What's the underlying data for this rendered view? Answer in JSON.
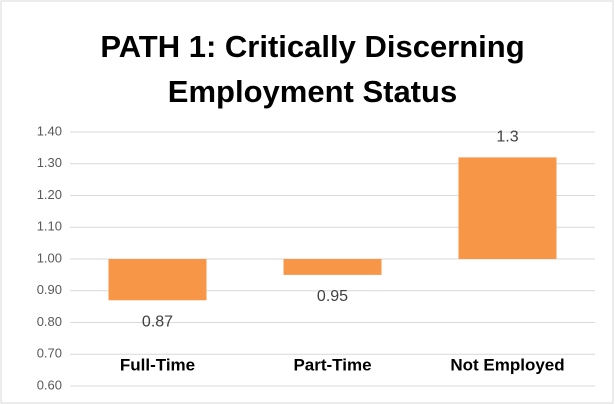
{
  "chart_data": {
    "type": "bar",
    "title": "PATH 1: Critically Discerning Employment Status",
    "categories": [
      "Full-Time",
      "Part-Time",
      "Not Employed"
    ],
    "values": [
      0.87,
      0.95,
      1.32
    ],
    "value_labels": [
      "0.87",
      "0.95",
      "1.3"
    ],
    "color": "#f79646",
    "baseline": 1.0,
    "ylim": [
      0.6,
      1.4
    ],
    "yticks": [
      {
        "value": 0.6,
        "label": "0.60"
      },
      {
        "value": 0.7,
        "label": "0.70"
      },
      {
        "value": 0.8,
        "label": "0.80"
      },
      {
        "value": 0.9,
        "label": "0.90"
      },
      {
        "value": 1.0,
        "label": "1.00"
      },
      {
        "value": 1.1,
        "label": "1.10"
      },
      {
        "value": 1.2,
        "label": "1.20"
      },
      {
        "value": 1.3,
        "label": "1.30"
      },
      {
        "value": 1.4,
        "label": "1.40"
      }
    ],
    "grid": true
  }
}
